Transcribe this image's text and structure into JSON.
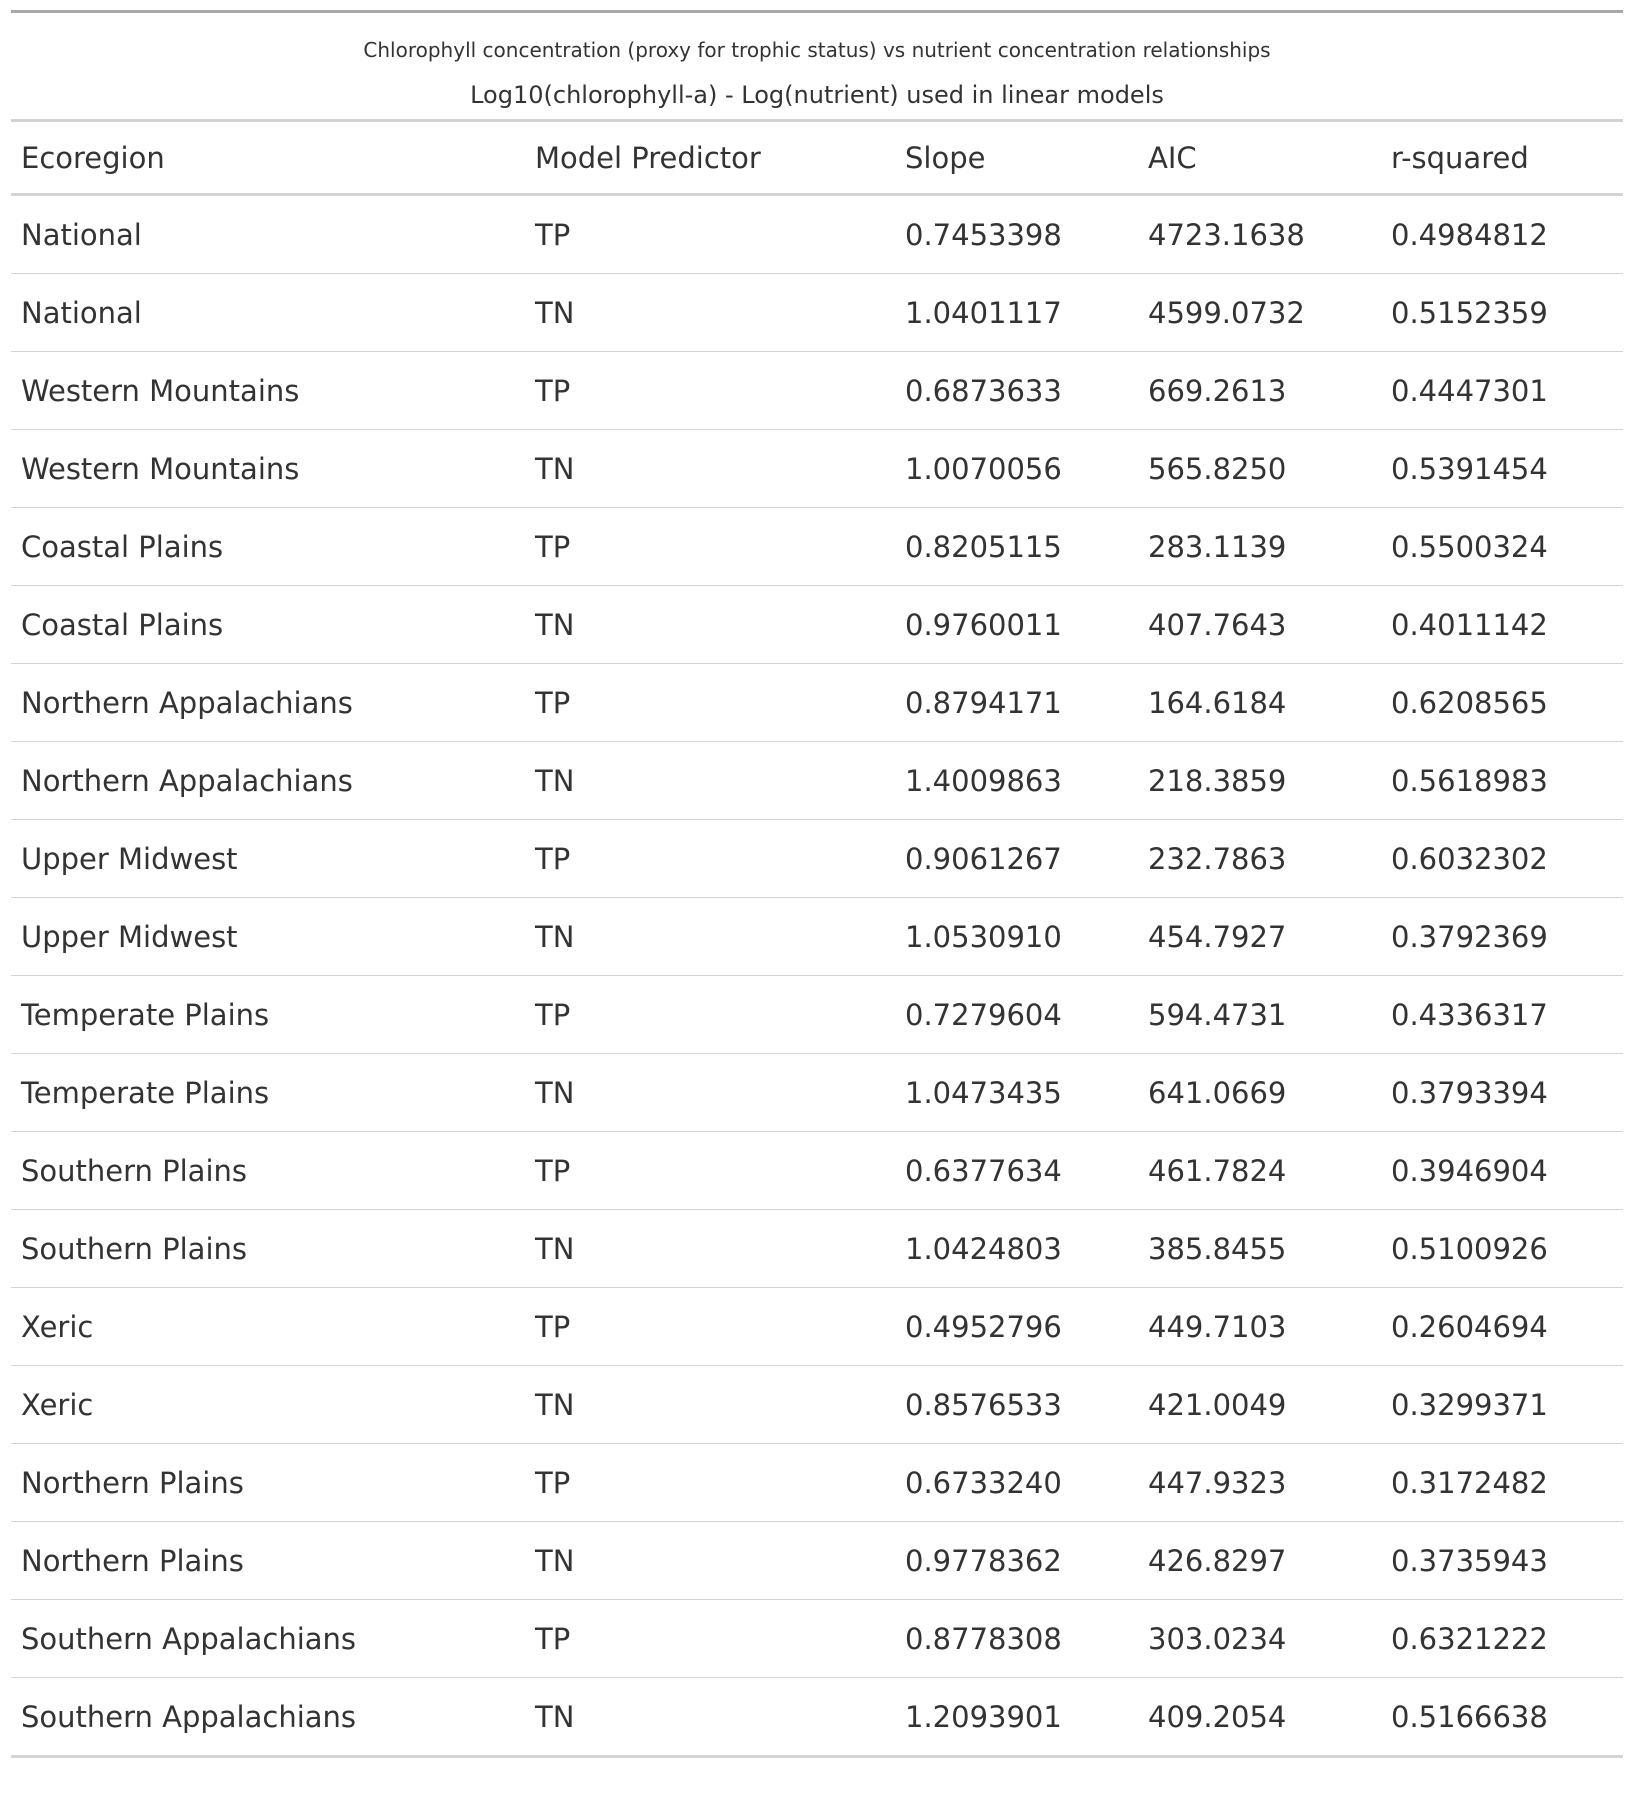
{
  "table": {
    "title": "Chlorophyll concentration (proxy for trophic status) vs nutrient concentration relationships",
    "subtitle": "Log10(chlorophyll-a) - Log(nutrient) used in linear models",
    "columns": [
      "Ecoregion",
      "Model Predictor",
      "Slope",
      "AIC",
      "r-squared"
    ],
    "rows": [
      [
        "National",
        "TP",
        "0.7453398",
        "4723.1638",
        "0.4984812"
      ],
      [
        "National",
        "TN",
        "1.0401117",
        "4599.0732",
        "0.5152359"
      ],
      [
        "Western Mountains",
        "TP",
        "0.6873633",
        "669.2613",
        "0.4447301"
      ],
      [
        "Western Mountains",
        "TN",
        "1.0070056",
        "565.8250",
        "0.5391454"
      ],
      [
        "Coastal Plains",
        "TP",
        "0.8205115",
        "283.1139",
        "0.5500324"
      ],
      [
        "Coastal Plains",
        "TN",
        "0.9760011",
        "407.7643",
        "0.4011142"
      ],
      [
        "Northern Appalachians",
        "TP",
        "0.8794171",
        "164.6184",
        "0.6208565"
      ],
      [
        "Northern Appalachians",
        "TN",
        "1.4009863",
        "218.3859",
        "0.5618983"
      ],
      [
        "Upper Midwest",
        "TP",
        "0.9061267",
        "232.7863",
        "0.6032302"
      ],
      [
        "Upper Midwest",
        "TN",
        "1.0530910",
        "454.7927",
        "0.3792369"
      ],
      [
        "Temperate Plains",
        "TP",
        "0.7279604",
        "594.4731",
        "0.4336317"
      ],
      [
        "Temperate Plains",
        "TN",
        "1.0473435",
        "641.0669",
        "0.3793394"
      ],
      [
        "Southern Plains",
        "TP",
        "0.6377634",
        "461.7824",
        "0.3946904"
      ],
      [
        "Southern Plains",
        "TN",
        "1.0424803",
        "385.8455",
        "0.5100926"
      ],
      [
        "Xeric",
        "TP",
        "0.4952796",
        "449.7103",
        "0.2604694"
      ],
      [
        "Xeric",
        "TN",
        "0.8576533",
        "421.0049",
        "0.3299371"
      ],
      [
        "Northern Plains",
        "TP",
        "0.6733240",
        "447.9323",
        "0.3172482"
      ],
      [
        "Northern Plains",
        "TN",
        "0.9778362",
        "426.8297",
        "0.3735943"
      ],
      [
        "Southern Appalachians",
        "TP",
        "0.8778308",
        "303.0234",
        "0.6321222"
      ],
      [
        "Southern Appalachians",
        "TN",
        "1.2093901",
        "409.2054",
        "0.5166638"
      ]
    ]
  }
}
